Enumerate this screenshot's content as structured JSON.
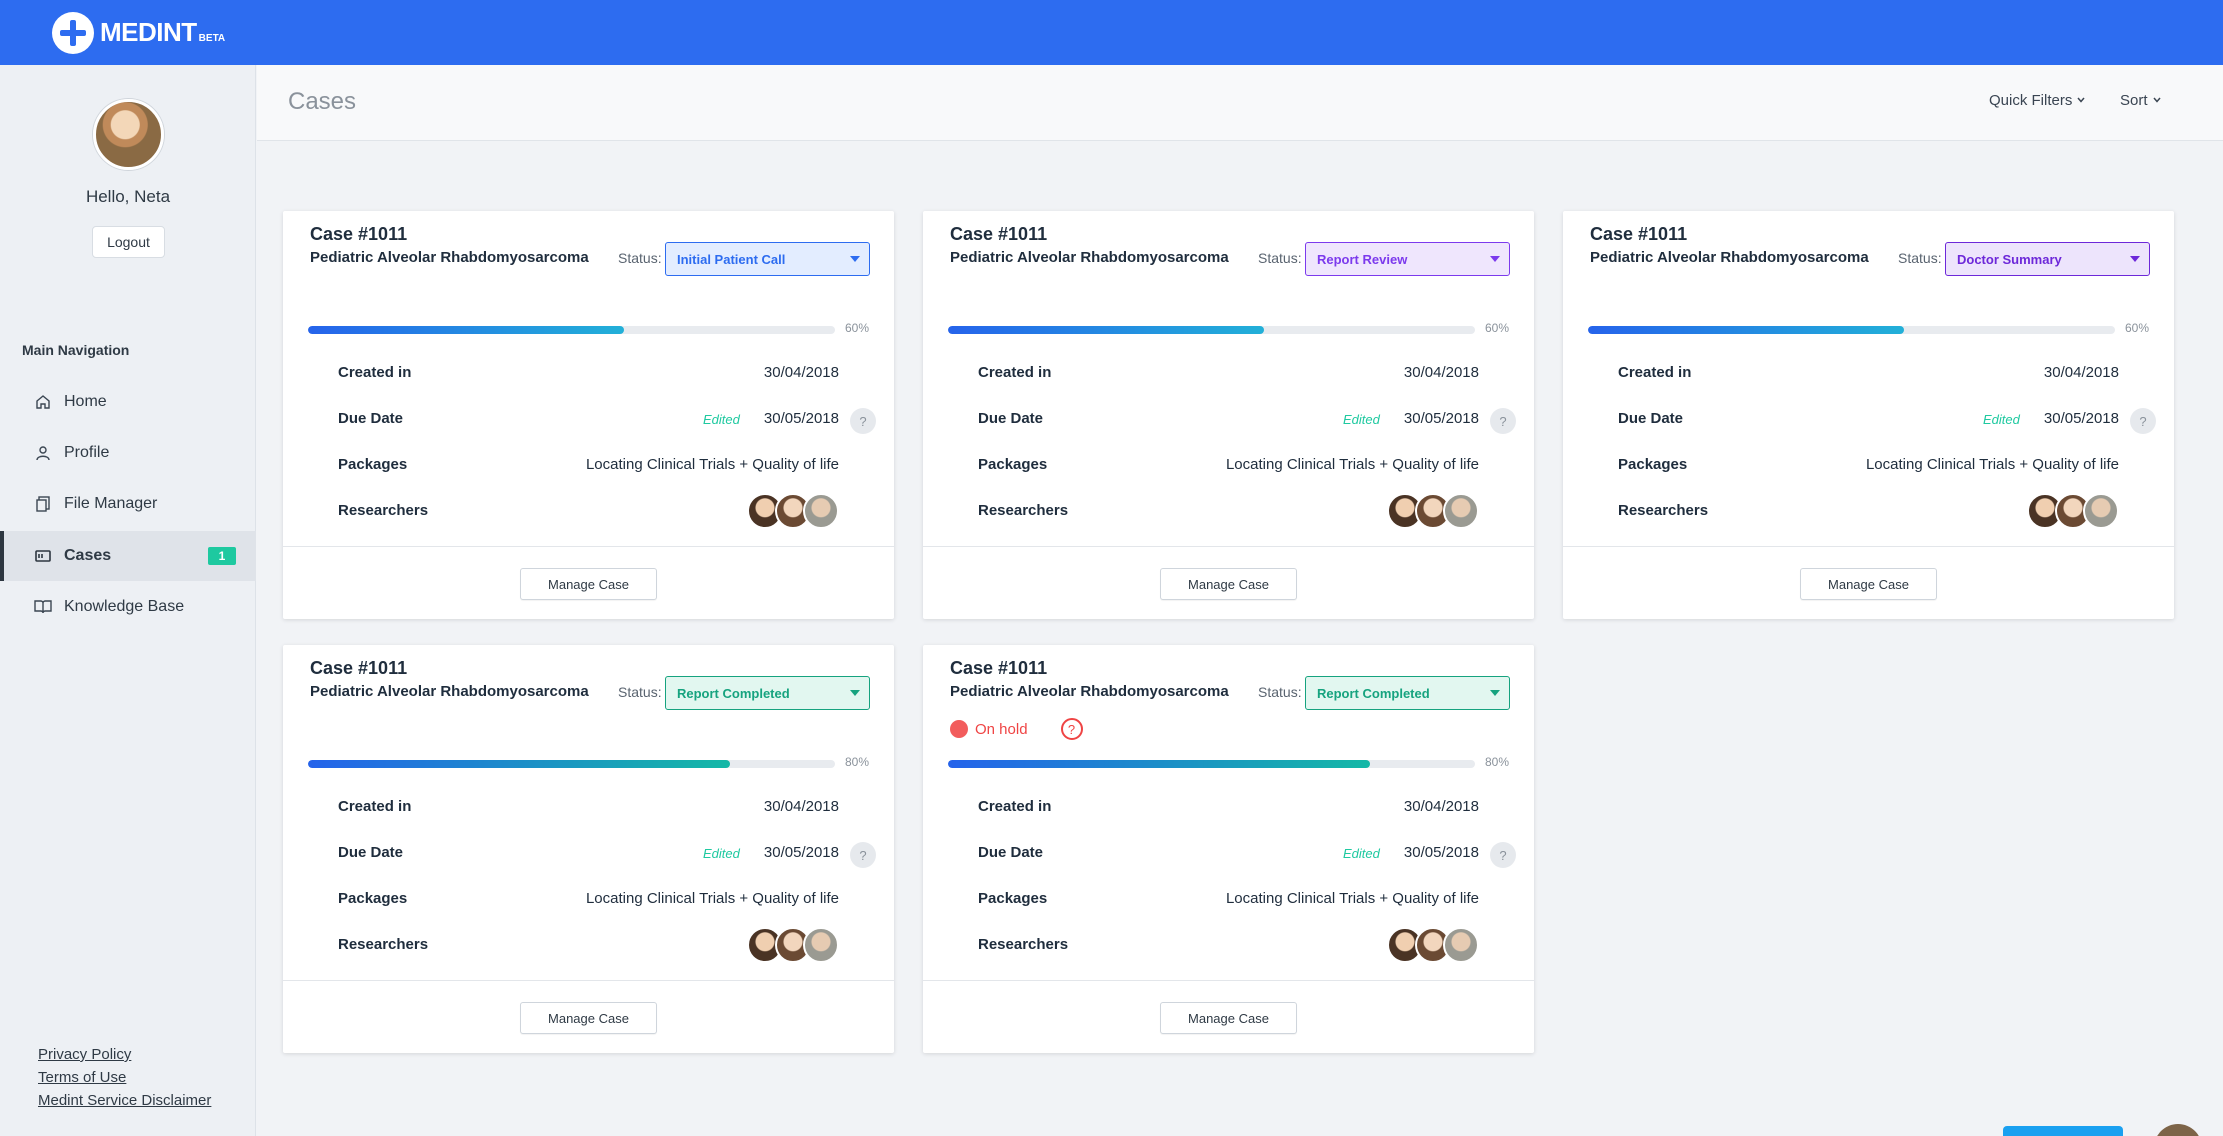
{
  "app": {
    "name": "MEDINT",
    "beta": "BETA"
  },
  "user": {
    "greeting": "Hello, Neta",
    "logout_label": "Logout"
  },
  "sidebar": {
    "nav_title": "Main Navigation",
    "items": [
      {
        "label": "Home",
        "icon": "home-icon"
      },
      {
        "label": "Profile",
        "icon": "user-icon"
      },
      {
        "label": "File Manager",
        "icon": "files-icon"
      },
      {
        "label": "Cases",
        "icon": "cases-icon",
        "badge": "1",
        "active": true
      },
      {
        "label": "Knowledge Base",
        "icon": "book-icon"
      }
    ],
    "footer_links": [
      "Privacy Policy",
      "Terms of Use",
      "Medint Service Disclaimer"
    ]
  },
  "header": {
    "title": "Cases",
    "quick_filters": "Quick Filters",
    "sort": "Sort"
  },
  "labels": {
    "status": "Status:",
    "created": "Created in",
    "due": "Due Date",
    "packages": "Packages",
    "researchers": "Researchers",
    "edited": "Edited",
    "manage": "Manage Case",
    "on_hold": "On hold",
    "help": "?"
  },
  "cards": [
    {
      "case_no": "Case #1011",
      "name": "Pediatric Alveolar Rhabdomyosarcoma",
      "status": "Initial Patient Call",
      "status_color": "#2d6cf0",
      "status_bg": "#e3edff",
      "progress": 0.6,
      "progress_label": "60%",
      "created": "30/04/2018",
      "due": "30/05/2018",
      "packages": "Locating Clinical Trials + Quality of life",
      "on_hold": false
    },
    {
      "case_no": "Case #1011",
      "name": "Pediatric Alveolar Rhabdomyosarcoma",
      "status": "Report Review",
      "status_color": "#7c3aed",
      "status_bg": "#efe6fd",
      "progress": 0.6,
      "progress_label": "60%",
      "created": "30/04/2018",
      "due": "30/05/2018",
      "packages": "Locating Clinical Trials + Quality of life",
      "on_hold": false
    },
    {
      "case_no": "Case #1011",
      "name": "Pediatric Alveolar Rhabdomyosarcoma",
      "status": "Doctor Summary",
      "status_color": "#6d28d9",
      "status_bg": "#ede4fc",
      "progress": 0.6,
      "progress_label": "60%",
      "created": "30/04/2018",
      "due": "30/05/2018",
      "packages": "Locating Clinical Trials + Quality of life",
      "on_hold": false
    },
    {
      "case_no": "Case #1011",
      "name": "Pediatric Alveolar Rhabdomyosarcoma",
      "status": "Report Completed",
      "status_color": "#16a37f",
      "status_bg": "#e2f7f0",
      "progress": 0.8,
      "progress_label": "80%",
      "created": "30/04/2018",
      "due": "30/05/2018",
      "packages": "Locating Clinical Trials + Quality of life",
      "on_hold": false
    },
    {
      "case_no": "Case #1011",
      "name": "Pediatric Alveolar Rhabdomyosarcoma",
      "status": "Report Completed",
      "status_color": "#16a37f",
      "status_bg": "#e2f7f0",
      "progress": 0.8,
      "progress_label": "80%",
      "created": "30/04/2018",
      "due": "30/05/2018",
      "packages": "Locating Clinical Trials + Quality of life",
      "on_hold": true
    }
  ]
}
